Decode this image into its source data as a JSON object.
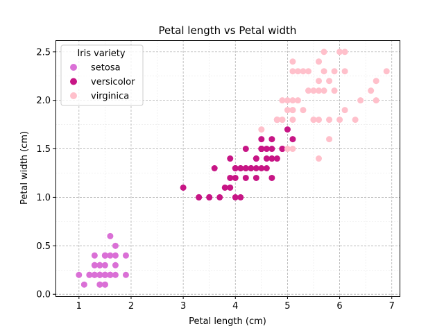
{
  "chart_data": {
    "type": "scatter",
    "title": "Petal length vs Petal width",
    "xlabel": "Petal length (cm)",
    "ylabel": "Petal width (cm)",
    "xlim": [
      0.55,
      7.15
    ],
    "ylim": [
      -0.02,
      2.62
    ],
    "x_ticks": [
      1,
      2,
      3,
      4,
      5,
      6,
      7
    ],
    "x_tick_labels": [
      "1",
      "2",
      "3",
      "4",
      "5",
      "6",
      "7"
    ],
    "y_ticks": [
      0.0,
      0.5,
      1.0,
      1.5,
      2.0,
      2.5
    ],
    "y_tick_labels": [
      "0.0",
      "0.5",
      "1.0",
      "1.5",
      "2.0",
      "2.5"
    ],
    "grid": true,
    "minor_grid": true,
    "legend": {
      "title": "Iris variety",
      "placement": "top-left"
    },
    "series": [
      {
        "name": "setosa",
        "color": "#da70d6",
        "points": [
          [
            1.4,
            0.2
          ],
          [
            1.4,
            0.2
          ],
          [
            1.3,
            0.2
          ],
          [
            1.5,
            0.2
          ],
          [
            1.4,
            0.2
          ],
          [
            1.7,
            0.4
          ],
          [
            1.4,
            0.3
          ],
          [
            1.5,
            0.2
          ],
          [
            1.4,
            0.2
          ],
          [
            1.5,
            0.1
          ],
          [
            1.5,
            0.2
          ],
          [
            1.6,
            0.2
          ],
          [
            1.4,
            0.1
          ],
          [
            1.1,
            0.1
          ],
          [
            1.2,
            0.2
          ],
          [
            1.5,
            0.4
          ],
          [
            1.3,
            0.4
          ],
          [
            1.4,
            0.3
          ],
          [
            1.7,
            0.3
          ],
          [
            1.5,
            0.3
          ],
          [
            1.7,
            0.2
          ],
          [
            1.5,
            0.4
          ],
          [
            1.0,
            0.2
          ],
          [
            1.7,
            0.5
          ],
          [
            1.9,
            0.2
          ],
          [
            1.6,
            0.2
          ],
          [
            1.6,
            0.4
          ],
          [
            1.5,
            0.2
          ],
          [
            1.4,
            0.2
          ],
          [
            1.6,
            0.2
          ],
          [
            1.6,
            0.2
          ],
          [
            1.5,
            0.4
          ],
          [
            1.5,
            0.1
          ],
          [
            1.4,
            0.2
          ],
          [
            1.5,
            0.2
          ],
          [
            1.2,
            0.2
          ],
          [
            1.3,
            0.2
          ],
          [
            1.4,
            0.1
          ],
          [
            1.3,
            0.2
          ],
          [
            1.5,
            0.2
          ],
          [
            1.3,
            0.3
          ],
          [
            1.3,
            0.3
          ],
          [
            1.3,
            0.2
          ],
          [
            1.6,
            0.6
          ],
          [
            1.9,
            0.4
          ],
          [
            1.4,
            0.3
          ],
          [
            1.6,
            0.2
          ],
          [
            1.4,
            0.2
          ],
          [
            1.5,
            0.2
          ],
          [
            1.4,
            0.2
          ]
        ]
      },
      {
        "name": "versicolor",
        "color": "#c71585",
        "points": [
          [
            4.7,
            1.4
          ],
          [
            4.5,
            1.5
          ],
          [
            4.9,
            1.5
          ],
          [
            4.0,
            1.3
          ],
          [
            4.6,
            1.5
          ],
          [
            4.5,
            1.3
          ],
          [
            4.7,
            1.6
          ],
          [
            3.3,
            1.0
          ],
          [
            4.6,
            1.3
          ],
          [
            3.9,
            1.4
          ],
          [
            3.5,
            1.0
          ],
          [
            4.2,
            1.5
          ],
          [
            4.0,
            1.0
          ],
          [
            4.7,
            1.4
          ],
          [
            3.6,
            1.3
          ],
          [
            4.4,
            1.4
          ],
          [
            4.5,
            1.5
          ],
          [
            4.1,
            1.0
          ],
          [
            4.5,
            1.5
          ],
          [
            3.9,
            1.1
          ],
          [
            4.8,
            1.8
          ],
          [
            4.0,
            1.3
          ],
          [
            4.9,
            1.5
          ],
          [
            4.7,
            1.2
          ],
          [
            4.3,
            1.3
          ],
          [
            4.4,
            1.4
          ],
          [
            4.8,
            1.4
          ],
          [
            5.0,
            1.7
          ],
          [
            4.5,
            1.5
          ],
          [
            3.5,
            1.0
          ],
          [
            3.8,
            1.1
          ],
          [
            3.7,
            1.0
          ],
          [
            3.9,
            1.2
          ],
          [
            5.1,
            1.6
          ],
          [
            4.5,
            1.5
          ],
          [
            4.5,
            1.6
          ],
          [
            4.7,
            1.5
          ],
          [
            4.4,
            1.3
          ],
          [
            4.1,
            1.3
          ],
          [
            4.0,
            1.3
          ],
          [
            4.4,
            1.2
          ],
          [
            4.6,
            1.4
          ],
          [
            4.0,
            1.2
          ],
          [
            3.3,
            1.0
          ],
          [
            4.2,
            1.3
          ],
          [
            4.2,
            1.2
          ],
          [
            4.2,
            1.3
          ],
          [
            4.3,
            1.3
          ],
          [
            3.0,
            1.1
          ],
          [
            4.1,
            1.3
          ]
        ]
      },
      {
        "name": "virginica",
        "color": "#ffc0cb",
        "points": [
          [
            6.0,
            2.5
          ],
          [
            5.1,
            1.9
          ],
          [
            5.9,
            2.1
          ],
          [
            5.6,
            1.8
          ],
          [
            5.8,
            2.2
          ],
          [
            6.6,
            2.1
          ],
          [
            4.5,
            1.7
          ],
          [
            6.3,
            1.8
          ],
          [
            5.8,
            1.8
          ],
          [
            6.1,
            2.5
          ],
          [
            5.1,
            2.0
          ],
          [
            5.3,
            1.9
          ],
          [
            5.5,
            2.1
          ],
          [
            5.0,
            2.0
          ],
          [
            5.1,
            2.4
          ],
          [
            5.3,
            2.3
          ],
          [
            5.5,
            1.8
          ],
          [
            6.7,
            2.2
          ],
          [
            6.9,
            2.3
          ],
          [
            5.0,
            1.5
          ],
          [
            5.7,
            2.3
          ],
          [
            4.9,
            2.0
          ],
          [
            6.7,
            2.0
          ],
          [
            4.9,
            1.8
          ],
          [
            5.7,
            2.1
          ],
          [
            6.0,
            1.8
          ],
          [
            4.8,
            1.8
          ],
          [
            4.9,
            1.8
          ],
          [
            5.6,
            2.1
          ],
          [
            5.8,
            1.6
          ],
          [
            6.1,
            1.9
          ],
          [
            6.4,
            2.0
          ],
          [
            5.6,
            2.2
          ],
          [
            5.1,
            1.5
          ],
          [
            5.6,
            1.4
          ],
          [
            6.1,
            2.3
          ],
          [
            5.6,
            2.4
          ],
          [
            5.5,
            1.8
          ],
          [
            4.8,
            1.8
          ],
          [
            5.4,
            2.1
          ],
          [
            5.6,
            2.4
          ],
          [
            5.1,
            2.3
          ],
          [
            5.1,
            1.9
          ],
          [
            5.9,
            2.3
          ],
          [
            5.7,
            2.5
          ],
          [
            5.2,
            2.3
          ],
          [
            5.0,
            1.9
          ],
          [
            5.2,
            2.0
          ],
          [
            5.4,
            2.3
          ],
          [
            5.1,
            1.8
          ]
        ]
      }
    ]
  }
}
